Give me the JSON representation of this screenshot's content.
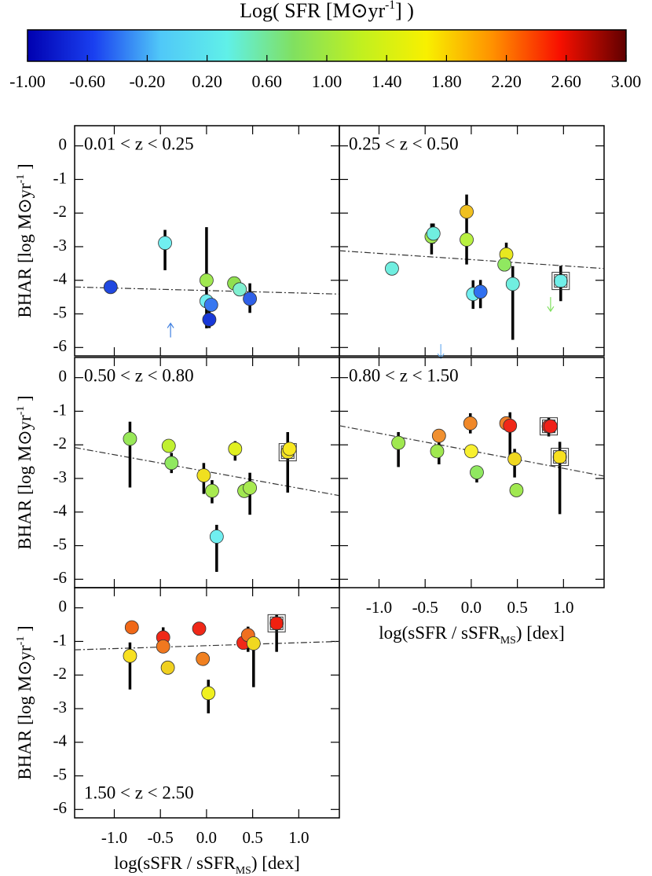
{
  "chart_data": [
    {
      "type": "colorbar",
      "title": [
        {
          "text": "Log( SFR [M"
        },
        {
          "text": "⊙"
        },
        {
          "text": "yr"
        },
        {
          "text": "-1",
          "sup": true
        },
        {
          "text": "] )"
        }
      ],
      "xlim": [
        -1,
        3
      ],
      "xticks": [
        {
          "value": -1,
          "label": "-1.00"
        },
        {
          "value": -0.6,
          "label": "-0.60"
        },
        {
          "value": -0.2,
          "label": "-0.20"
        },
        {
          "value": 0.2,
          "label": "0.20"
        },
        {
          "value": 0.6,
          "label": "0.60"
        },
        {
          "value": 1,
          "label": "1.00"
        },
        {
          "value": 1.4,
          "label": "1.40"
        },
        {
          "value": 1.8,
          "label": "1.80"
        },
        {
          "value": 2.2,
          "label": "2.20"
        },
        {
          "value": 2.6,
          "label": "2.60"
        },
        {
          "value": 3,
          "label": "3.00"
        }
      ],
      "colormap": [
        "#0000b0",
        "#1a40f0",
        "#50c8f8",
        "#60f0e8",
        "#80e060",
        "#c0f020",
        "#f8f000",
        "#ff9000",
        "#f81000",
        "#600000"
      ]
    },
    {
      "type": "scatter",
      "label": "0.01 < z < 0.25",
      "label_corner": "top-left",
      "x": [
        -1.04,
        -0.45,
        0.0,
        0.0,
        0.05,
        0.03,
        0.3,
        0.36,
        0.47
      ],
      "y": [
        -4.2,
        -2.89,
        -4.0,
        -4.62,
        -4.73,
        -5.17,
        -4.09,
        -4.27,
        -4.55
      ],
      "errors": [
        null,
        [
          0.81,
          0.39
        ],
        null,
        [
          0.81,
          2.2
        ],
        null,
        [
          0.25,
          0.3
        ],
        null,
        null,
        [
          0.42,
          0.46
        ]
      ],
      "colors": [
        "#2048e0",
        "#70eef0",
        "#a0e850",
        "#70eef0",
        "#3878f0",
        "#1838d8",
        "#90e050",
        "#80f0d0",
        "#2f60e8"
      ],
      "boxed": [
        false,
        false,
        false,
        false,
        false,
        false,
        false,
        false,
        false
      ],
      "limits": [
        {
          "x": -0.39,
          "y": -5.7,
          "direction": "up",
          "color": "#4080e0"
        }
      ],
      "fit": {
        "x": [
          -1.43,
          1.44
        ],
        "y": [
          -4.2,
          -4.41
        ]
      },
      "xlim": [
        -1.43,
        1.44
      ],
      "ylim": [
        -6.25,
        0.6
      ],
      "xticks": [
        {
          "value": -1,
          "label": "-1.0"
        },
        -0.5,
        {
          "value": 0,
          "label": "0.0"
        },
        0.5,
        {
          "value": 1,
          "label": "1.0"
        }
      ],
      "yticks": [
        0,
        -1,
        -2,
        -3,
        -4,
        -5,
        -6
      ],
      "show_xticklabels": false,
      "show_yticklabels": true
    },
    {
      "type": "scatter",
      "label": "0.25 < z < 0.50",
      "label_corner": "top-left",
      "x": [
        -0.86,
        -0.43,
        -0.41,
        -0.05,
        -0.05,
        0.02,
        0.1,
        0.38,
        0.36,
        0.45,
        0.97
      ],
      "y": [
        -3.65,
        -2.7,
        -2.61,
        -1.96,
        -2.79,
        -4.41,
        -4.34,
        -3.23,
        -3.53,
        -4.11,
        -4.02
      ],
      "errors": [
        null,
        [
          0.53,
          0.39
        ],
        [
          0.3,
          0.3
        ],
        [
          1.57,
          0.51
        ],
        null,
        [
          0.44,
          0.41
        ],
        [
          0.49,
          0.35
        ],
        [
          0.35,
          0.35
        ],
        null,
        [
          1.66,
          0.53
        ],
        [
          0.6,
          0.45
        ]
      ],
      "colors": [
        "#70eee0",
        "#a0e850",
        "#70eee0",
        "#f0c020",
        "#b8f040",
        "#70eef0",
        "#3070f0",
        "#e8e820",
        "#90e860",
        "#70eee0",
        "#70eee8"
      ],
      "boxed": [
        false,
        false,
        false,
        false,
        false,
        false,
        false,
        false,
        false,
        false,
        true
      ],
      "limits": [
        {
          "x": 0.86,
          "y": -4.5,
          "direction": "down",
          "color": "#80e060"
        },
        {
          "x": -0.33,
          "y": -5.9,
          "direction": "down",
          "color": "#70b0f0"
        }
      ],
      "fit": {
        "x": [
          -1.43,
          1.44
        ],
        "y": [
          -3.12,
          -3.65
        ]
      },
      "xlim": [
        -1.43,
        1.44
      ],
      "ylim": [
        -6.25,
        0.6
      ],
      "xticks": [
        {
          "value": -1,
          "label": "-1.0"
        },
        -0.5,
        {
          "value": 0,
          "label": "0.0"
        },
        0.5,
        {
          "value": 1,
          "label": "1.0"
        }
      ],
      "yticks": [
        0,
        -1,
        -2,
        -3,
        -4,
        -5,
        -6
      ],
      "show_xticklabels": false,
      "show_yticklabels": false
    },
    {
      "type": "scatter",
      "label": "0.50 < z < 0.80",
      "label_corner": "top-left",
      "x": [
        -0.83,
        -0.41,
        -0.38,
        -0.03,
        0.06,
        0.11,
        0.31,
        0.41,
        0.47,
        0.88,
        0.9
      ],
      "y": [
        -1.82,
        -2.03,
        -2.54,
        -2.91,
        -3.37,
        -4.73,
        -2.12,
        -3.37,
        -3.28,
        -2.22,
        -2.12
      ],
      "errors": [
        [
          1.45,
          0.51
        ],
        null,
        [
          0.3,
          0.3
        ],
        [
          0.55,
          0.37
        ],
        [
          0.37,
          0.32
        ],
        [
          1.05,
          0.35
        ],
        [
          0.35,
          0.23
        ],
        null,
        [
          0.8,
          0.45
        ],
        [
          1.2,
          0.6
        ],
        null
      ],
      "colors": [
        "#98e858",
        "#c0f030",
        "#90e860",
        "#f0e020",
        "#a8ea50",
        "#70eef0",
        "#e0f020",
        "#a0e850",
        "#a8ea50",
        "#f0e020",
        "#f8e820"
      ],
      "boxed": [
        false,
        false,
        false,
        false,
        false,
        false,
        false,
        false,
        false,
        true,
        false
      ],
      "limits": [],
      "fit": {
        "x": [
          -1.43,
          1.44
        ],
        "y": [
          -2.08,
          -3.51
        ]
      },
      "xlim": [
        -1.43,
        1.44
      ],
      "ylim": [
        -6.25,
        0.6
      ],
      "xticks": [
        {
          "value": -1,
          "label": "-1.0"
        },
        -0.5,
        {
          "value": 0,
          "label": "0.0"
        },
        0.5,
        {
          "value": 1,
          "label": "1.0"
        }
      ],
      "yticks": [
        0,
        -1,
        -2,
        -3,
        -4,
        -5,
        -6
      ],
      "show_xticklabels": false,
      "show_yticklabels": true
    },
    {
      "type": "scatter",
      "label": "0.80 < z < 1.50",
      "label_corner": "top-left",
      "x": [
        -0.79,
        -0.35,
        -0.37,
        -0.01,
        0.0,
        0.06,
        0.38,
        0.42,
        0.47,
        0.49,
        0.84,
        0.86,
        0.96
      ],
      "y": [
        -1.94,
        -1.73,
        -2.19,
        -1.36,
        -2.19,
        -2.82,
        -1.36,
        -1.43,
        -2.42,
        -3.35,
        -1.45,
        -1.45,
        -2.36
      ],
      "errors": [
        [
          0.72,
          0.32
        ],
        [
          0.85,
          0.2
        ],
        null,
        [
          0.3,
          0.3
        ],
        [
          0.2,
          0.2
        ],
        [
          0.3,
          0.2
        ],
        null,
        [
          1.1,
          0.4
        ],
        [
          0.55,
          0.3
        ],
        null,
        [
          0.3,
          0.25
        ],
        null,
        [
          1.7,
          0.45
        ]
      ],
      "colors": [
        "#a0e850",
        "#f09030",
        "#a0e850",
        "#f08828",
        "#f8f030",
        "#90e860",
        "#f08028",
        "#f02818",
        "#f0d820",
        "#a0e850",
        "#f03020",
        "#f02018",
        "#f8e020"
      ],
      "boxed": [
        false,
        false,
        false,
        false,
        false,
        false,
        false,
        false,
        false,
        false,
        true,
        false,
        true
      ],
      "limits": [],
      "fit": {
        "x": [
          -1.43,
          1.44
        ],
        "y": [
          -1.43,
          -2.93
        ]
      },
      "xlim": [
        -1.43,
        1.44
      ],
      "ylim": [
        -6.25,
        0.6
      ],
      "xticks": [
        {
          "value": -1,
          "label": "-1.0"
        },
        -0.5,
        {
          "value": 0,
          "label": "0.0"
        },
        0.5,
        {
          "value": 1,
          "label": "1.0"
        }
      ],
      "yticks": [
        0,
        -1,
        -2,
        -3,
        -4,
        -5,
        -6
      ],
      "show_xticklabels": true,
      "show_yticklabels": false
    },
    {
      "type": "scatter",
      "label": "1.50 < z < 2.50",
      "label_corner": "bottom-left",
      "x": [
        -0.81,
        -0.83,
        -0.47,
        -0.47,
        -0.42,
        -0.08,
        -0.04,
        0.02,
        0.4,
        0.45,
        0.51,
        0.76
      ],
      "y": [
        -0.58,
        -1.43,
        -0.88,
        -1.15,
        -1.78,
        -0.62,
        -1.52,
        -2.54,
        -1.04,
        -0.81,
        -1.06,
        -0.46
      ],
      "errors": [
        null,
        [
          1.0,
          0.4
        ],
        [
          0.3,
          0.3
        ],
        null,
        null,
        [
          0.2,
          0.2
        ],
        null,
        [
          0.6,
          0.4
        ],
        null,
        [
          0.5,
          0.25
        ],
        [
          1.3,
          0.3
        ],
        [
          0.85,
          0.25
        ]
      ],
      "colors": [
        "#f06818",
        "#f8e020",
        "#f02818",
        "#f07820",
        "#f0d020",
        "#f02818",
        "#f08020",
        "#f0f020",
        "#f02818",
        "#f07020",
        "#f0d820",
        "#f02010"
      ],
      "boxed": [
        false,
        false,
        false,
        false,
        false,
        false,
        false,
        false,
        false,
        false,
        false,
        true
      ],
      "limits": [],
      "fit": {
        "x": [
          -1.43,
          1.44
        ],
        "y": [
          -1.25,
          -1.0
        ]
      },
      "xlim": [
        -1.43,
        1.44
      ],
      "ylim": [
        -6.25,
        0.6
      ],
      "xticks": [
        {
          "value": -1,
          "label": "-1.0"
        },
        -0.5,
        {
          "value": 0,
          "label": "0.0"
        },
        0.5,
        {
          "value": 1,
          "label": "1.0"
        }
      ],
      "yticks": [
        0,
        -1,
        -2,
        -3,
        -4,
        -5,
        -6
      ],
      "show_xticklabels": true,
      "show_yticklabels": true
    }
  ],
  "xlabel": [
    {
      "text": "log(sSFR / sSFR"
    },
    {
      "text": "MS",
      "sub": true
    },
    {
      "text": ") [dex]"
    }
  ],
  "ylabel": [
    {
      "text": "BHAR [log M"
    },
    {
      "text": "⊙"
    },
    {
      "text": "yr"
    },
    {
      "text": "-1",
      "sup": true
    },
    {
      "text": " ]"
    }
  ]
}
